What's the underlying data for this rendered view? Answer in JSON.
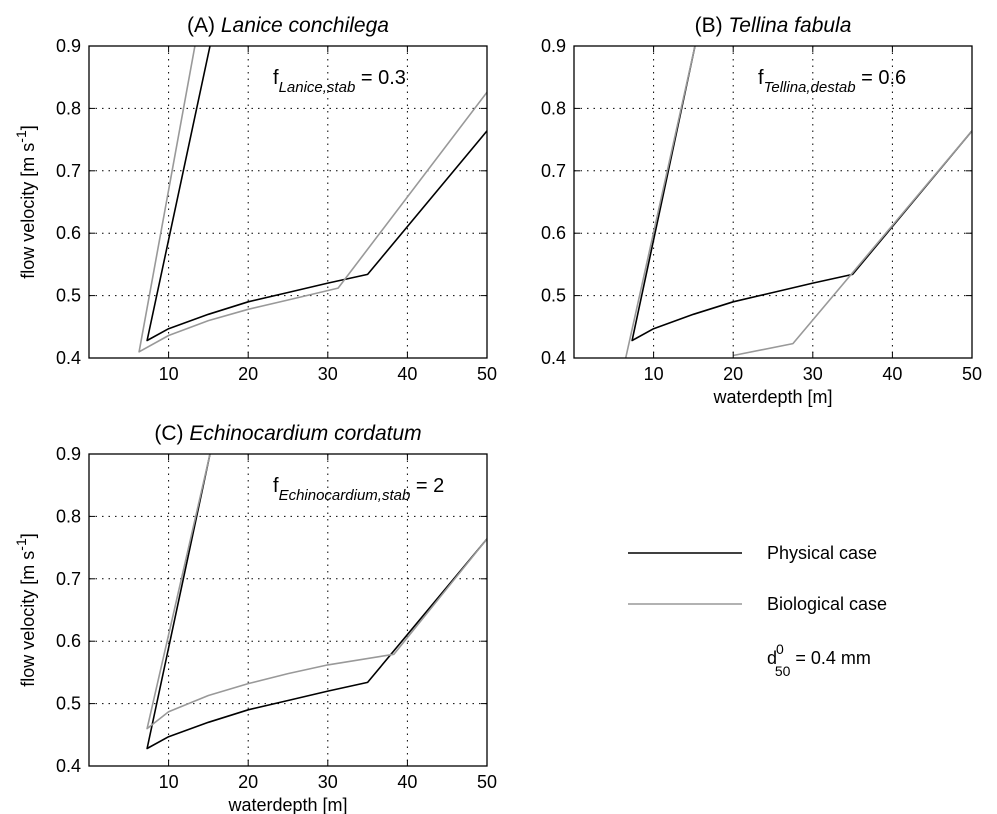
{
  "chart_data": [
    {
      "id": "A",
      "type": "line",
      "title_prefix": "(A) ",
      "title_species": "Lanice conchilega",
      "xlabel": "",
      "ylabel": "flow velocity [m s",
      "ylabel_exp": "-1",
      "ylabel_tail": "]",
      "xlim": [
        0,
        50
      ],
      "ylim": [
        0.4,
        0.9
      ],
      "xticks": [
        10,
        20,
        30,
        40,
        50
      ],
      "yticks": [
        0.4,
        0.5,
        0.6,
        0.7,
        0.8,
        0.9
      ],
      "grid": true,
      "annotation": {
        "base": "f",
        "sub": "Lanice,stab",
        "tail": " = 0.3"
      },
      "series": [
        {
          "key": "physical",
          "color": "#000000",
          "points": [
            [
              15.2,
              0.9
            ],
            [
              7.3,
              0.428
            ],
            [
              10,
              0.447
            ],
            [
              15,
              0.47
            ],
            [
              20,
              0.49
            ],
            [
              25,
              0.505
            ],
            [
              30,
              0.52
            ],
            [
              35,
              0.534
            ],
            [
              50,
              0.764
            ]
          ]
        },
        {
          "key": "biological",
          "color": "#999999",
          "points": [
            [
              13.3,
              0.9
            ],
            [
              6.3,
              0.41
            ],
            [
              10,
              0.436
            ],
            [
              15,
              0.46
            ],
            [
              20,
              0.478
            ],
            [
              25,
              0.493
            ],
            [
              31.3,
              0.512
            ],
            [
              50,
              0.826
            ]
          ]
        }
      ]
    },
    {
      "id": "B",
      "type": "line",
      "title_prefix": "(B) ",
      "title_species": "Tellina fabula",
      "xlabel": "waterdepth [m]",
      "ylabel": "",
      "xlim": [
        0,
        50
      ],
      "ylim": [
        0.4,
        0.9
      ],
      "xticks": [
        10,
        20,
        30,
        40,
        50
      ],
      "yticks": [
        0.4,
        0.5,
        0.6,
        0.7,
        0.8,
        0.9
      ],
      "grid": true,
      "annotation": {
        "base": "f",
        "sub": "Tellina,destab",
        "tail": " = 0.6"
      },
      "series": [
        {
          "key": "physical",
          "color": "#000000",
          "points": [
            [
              15.2,
              0.9
            ],
            [
              7.3,
              0.428
            ],
            [
              10,
              0.447
            ],
            [
              15,
              0.47
            ],
            [
              20,
              0.49
            ],
            [
              25,
              0.505
            ],
            [
              30,
              0.52
            ],
            [
              35,
              0.534
            ],
            [
              50,
              0.764
            ]
          ]
        },
        {
          "key": "biological",
          "color": "#999999",
          "points": [
            [
              15.2,
              0.9
            ],
            [
              6.5,
              0.4
            ]
          ]
        },
        {
          "key": "biological",
          "color": "#999999",
          "points": [
            [
              20,
              0.404
            ],
            [
              27.5,
              0.423
            ],
            [
              50,
              0.764
            ]
          ]
        }
      ]
    },
    {
      "id": "C",
      "type": "line",
      "title_prefix": "(C)  ",
      "title_species": "Echinocardium cordatum",
      "xlabel": "waterdepth [m]",
      "ylabel": "flow velocity [m s",
      "ylabel_exp": "-1",
      "ylabel_tail": "]",
      "xlim": [
        0,
        50
      ],
      "ylim": [
        0.4,
        0.9
      ],
      "xticks": [
        10,
        20,
        30,
        40,
        50
      ],
      "yticks": [
        0.4,
        0.5,
        0.6,
        0.7,
        0.8,
        0.9
      ],
      "grid": true,
      "annotation": {
        "base": "f",
        "sub": "Echinocardium,stab",
        "tail": " = 2"
      },
      "series": [
        {
          "key": "physical",
          "color": "#000000",
          "points": [
            [
              15.2,
              0.9
            ],
            [
              7.3,
              0.428
            ],
            [
              10,
              0.447
            ],
            [
              15,
              0.47
            ],
            [
              20,
              0.49
            ],
            [
              25,
              0.505
            ],
            [
              30,
              0.52
            ],
            [
              35,
              0.534
            ],
            [
              50,
              0.764
            ]
          ]
        },
        {
          "key": "biological",
          "color": "#999999",
          "points": [
            [
              15.2,
              0.9
            ],
            [
              7.3,
              0.46
            ],
            [
              10,
              0.487
            ],
            [
              15,
              0.513
            ],
            [
              20,
              0.532
            ],
            [
              25,
              0.548
            ],
            [
              30,
              0.562
            ],
            [
              38.3,
              0.579
            ],
            [
              50,
              0.764
            ]
          ]
        }
      ]
    }
  ],
  "legend": {
    "items": [
      {
        "label": "Physical case",
        "color": "#000000"
      },
      {
        "label": "Biological case",
        "color": "#999999"
      }
    ],
    "note_base": "d",
    "note_sup": "0",
    "note_sub": "50",
    "note_tail": " = 0.4 mm"
  }
}
